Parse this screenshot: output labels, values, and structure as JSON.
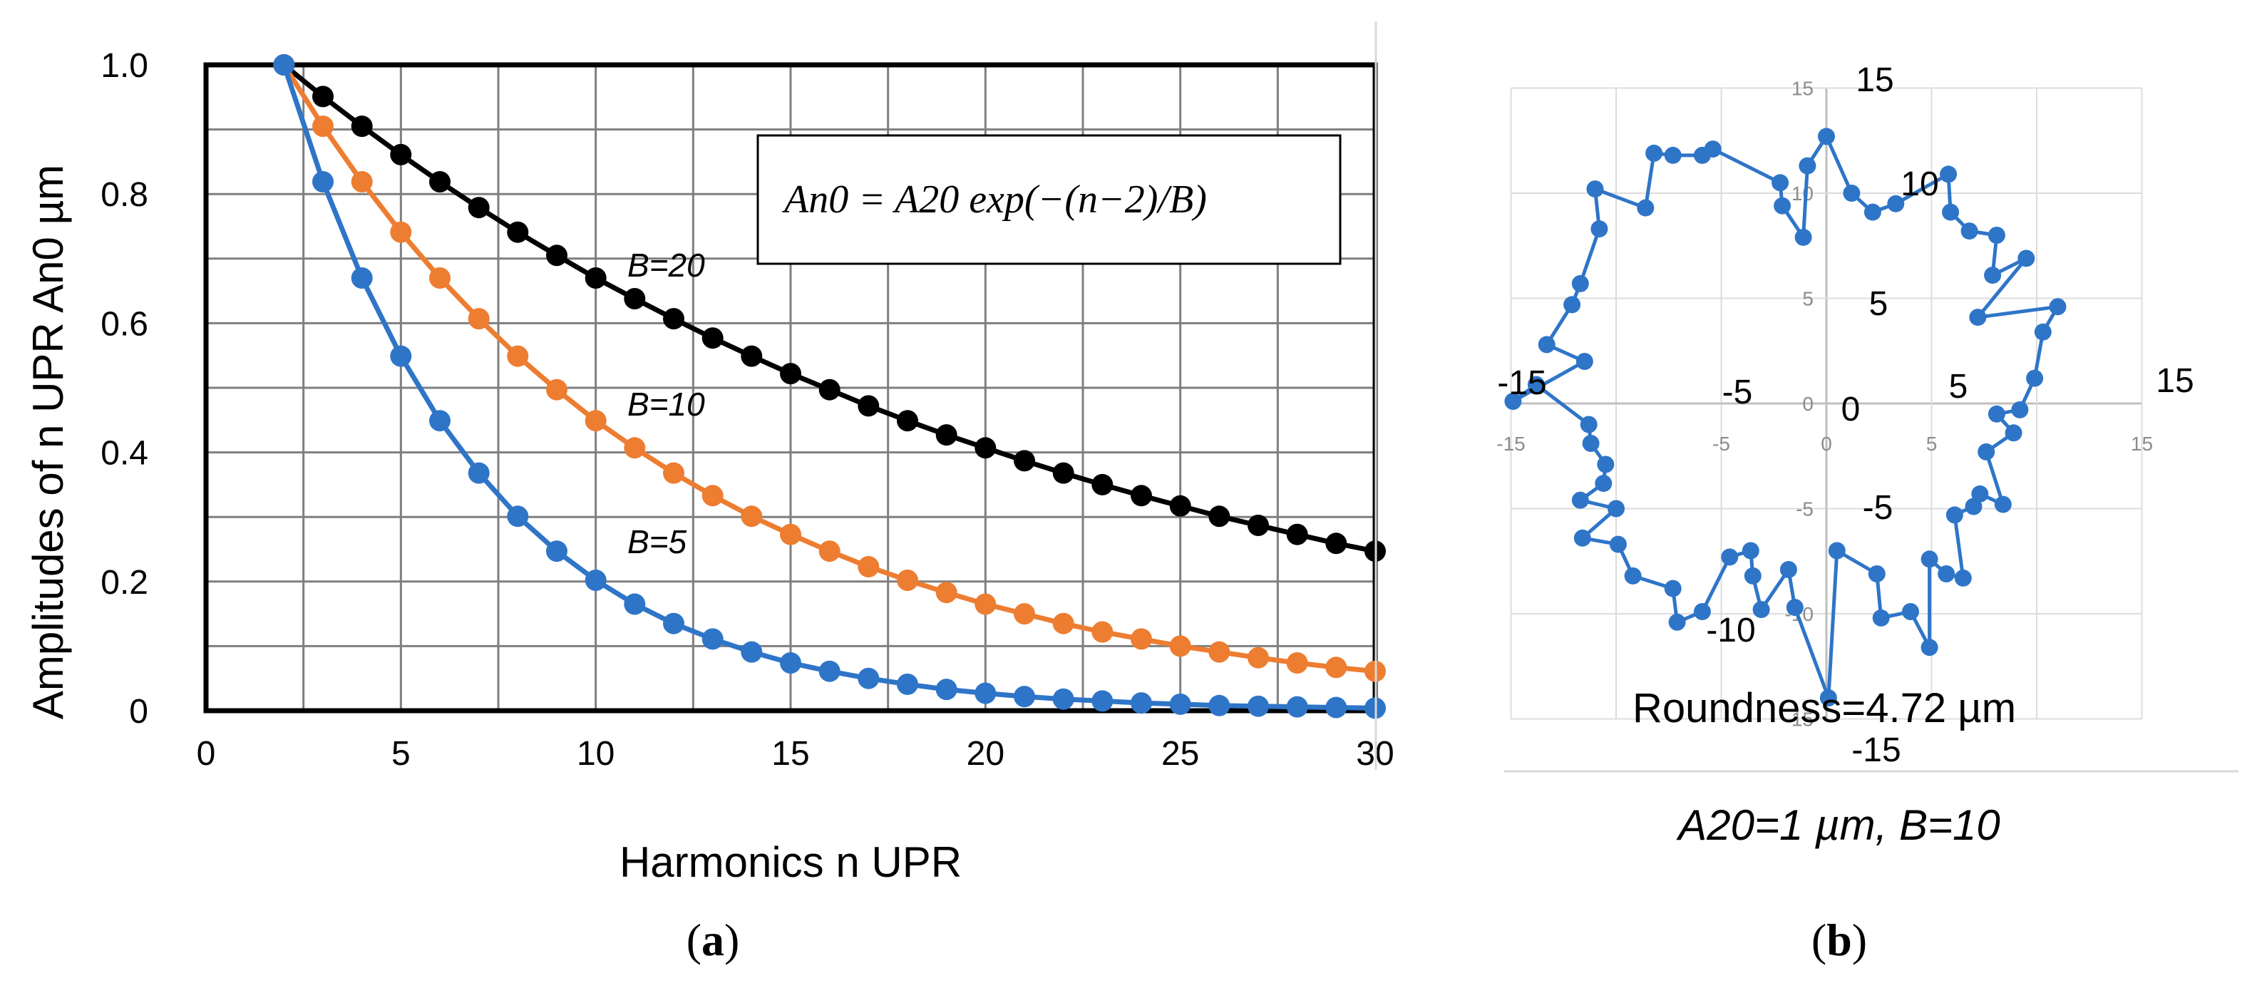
{
  "chart_data": [
    {
      "type": "line",
      "panel_label": "a",
      "xlabel": "Harmonics n UPR",
      "ylabel": "Amplitudes of n UPR An0 µm",
      "xlim": [
        0,
        30
      ],
      "ylim": [
        0,
        1.0
      ],
      "x_ticks": [
        "0",
        "5",
        "10",
        "15",
        "20",
        "25",
        "30"
      ],
      "y_ticks": [
        "0",
        "0.2",
        "0.4",
        "0.6",
        "0.8",
        "1.0"
      ],
      "grid": true,
      "formula_box": "An0 = A20 exp(−(n−2)/B)",
      "x": [
        2,
        3,
        4,
        5,
        6,
        7,
        8,
        9,
        10,
        11,
        12,
        13,
        14,
        15,
        16,
        17,
        18,
        19,
        20,
        21,
        22,
        23,
        24,
        25,
        26,
        27,
        28,
        29,
        30
      ],
      "series": [
        {
          "name": "B=20",
          "color": "#000000",
          "values": [
            1.0,
            0.951,
            0.905,
            0.861,
            0.819,
            0.779,
            0.741,
            0.705,
            0.67,
            0.638,
            0.607,
            0.577,
            0.549,
            0.522,
            0.497,
            0.472,
            0.449,
            0.427,
            0.407,
            0.387,
            0.368,
            0.35,
            0.333,
            0.317,
            0.301,
            0.287,
            0.273,
            0.259,
            0.247
          ]
        },
        {
          "name": "B=10",
          "color": "#ed7d31",
          "values": [
            1.0,
            0.905,
            0.819,
            0.741,
            0.67,
            0.607,
            0.549,
            0.497,
            0.449,
            0.407,
            0.368,
            0.333,
            0.301,
            0.273,
            0.247,
            0.223,
            0.202,
            0.183,
            0.165,
            0.15,
            0.135,
            0.122,
            0.111,
            0.1,
            0.091,
            0.082,
            0.074,
            0.067,
            0.061
          ]
        },
        {
          "name": "B=5",
          "color": "#2e75c8",
          "values": [
            1.0,
            0.819,
            0.67,
            0.549,
            0.449,
            0.368,
            0.301,
            0.247,
            0.202,
            0.165,
            0.135,
            0.111,
            0.091,
            0.074,
            0.061,
            0.05,
            0.041,
            0.033,
            0.027,
            0.022,
            0.018,
            0.015,
            0.012,
            0.01,
            0.008,
            0.007,
            0.006,
            0.005,
            0.004
          ]
        }
      ],
      "annotations": [
        "B=20",
        "B=10",
        "B=5"
      ]
    },
    {
      "type": "line",
      "subtype": "polar-profile",
      "panel_label": "b",
      "caption": "A20=1 µm, B=10",
      "annotation": "Roundness=4.72 µm",
      "xlim": [
        -15,
        15
      ],
      "ylim": [
        -15,
        15
      ],
      "grid": true,
      "axis_ticks_small": [
        "-15",
        "-5",
        "0",
        "5",
        "15"
      ],
      "y_ticks_small": [
        "15",
        "10",
        "5",
        "0",
        "-5",
        "-10",
        "-15"
      ],
      "big_labels": {
        "top": "15",
        "ten_top": "10",
        "five_top": "5",
        "left": "-15",
        "minus_five_left": "-5",
        "origin": "0",
        "five_right": "5",
        "right": "15",
        "minus_five_bottom": "-5",
        "minus_ten_bottom": "-10",
        "bottom": "-15"
      },
      "color": "#2e75c8",
      "points": [
        [
          0.0,
          12.7
        ],
        [
          1.2,
          10.0
        ],
        [
          2.2,
          9.1
        ],
        [
          3.3,
          9.5
        ],
        [
          5.8,
          10.9
        ],
        [
          5.9,
          9.1
        ],
        [
          6.8,
          8.2
        ],
        [
          8.1,
          8.0
        ],
        [
          7.9,
          6.1
        ],
        [
          9.5,
          6.9
        ],
        [
          7.2,
          4.1
        ],
        [
          11.0,
          4.6
        ],
        [
          10.3,
          3.4
        ],
        [
          9.9,
          1.2
        ],
        [
          9.2,
          -0.3
        ],
        [
          8.1,
          -0.5
        ],
        [
          8.9,
          -1.4
        ],
        [
          7.6,
          -2.3
        ],
        [
          8.4,
          -4.8
        ],
        [
          7.3,
          -4.3
        ],
        [
          7.0,
          -4.9
        ],
        [
          6.1,
          -5.3
        ],
        [
          6.5,
          -8.3
        ],
        [
          5.7,
          -8.1
        ],
        [
          4.9,
          -7.4
        ],
        [
          4.9,
          -11.6
        ],
        [
          4.0,
          -9.9
        ],
        [
          2.6,
          -10.2
        ],
        [
          2.4,
          -8.1
        ],
        [
          0.5,
          -7.0
        ],
        [
          0.1,
          -14.0
        ],
        [
          -1.5,
          -9.7
        ],
        [
          -1.8,
          -7.9
        ],
        [
          -3.1,
          -9.8
        ],
        [
          -3.5,
          -8.2
        ],
        [
          -3.6,
          -7.0
        ],
        [
          -4.6,
          -7.3
        ],
        [
          -5.9,
          -9.9
        ],
        [
          -7.1,
          -10.4
        ],
        [
          -7.3,
          -8.8
        ],
        [
          -9.2,
          -8.2
        ],
        [
          -9.9,
          -6.7
        ],
        [
          -11.6,
          -6.4
        ],
        [
          -10.0,
          -5.0
        ],
        [
          -11.7,
          -4.6
        ],
        [
          -10.6,
          -3.8
        ],
        [
          -10.5,
          -2.9
        ],
        [
          -11.2,
          -1.9
        ],
        [
          -11.3,
          -1.0
        ],
        [
          -13.8,
          0.9
        ],
        [
          -14.9,
          0.1
        ],
        [
          -11.5,
          2.0
        ],
        [
          -13.3,
          2.8
        ],
        [
          -12.1,
          4.7
        ],
        [
          -11.7,
          5.7
        ],
        [
          -10.8,
          8.3
        ],
        [
          -11.0,
          10.2
        ],
        [
          -8.6,
          9.3
        ],
        [
          -8.2,
          11.9
        ],
        [
          -7.3,
          11.8
        ],
        [
          -5.9,
          11.8
        ],
        [
          -5.4,
          12.1
        ],
        [
          -2.2,
          10.5
        ],
        [
          -2.1,
          9.4
        ],
        [
          -1.1,
          7.9
        ],
        [
          -0.9,
          11.3
        ]
      ]
    }
  ]
}
